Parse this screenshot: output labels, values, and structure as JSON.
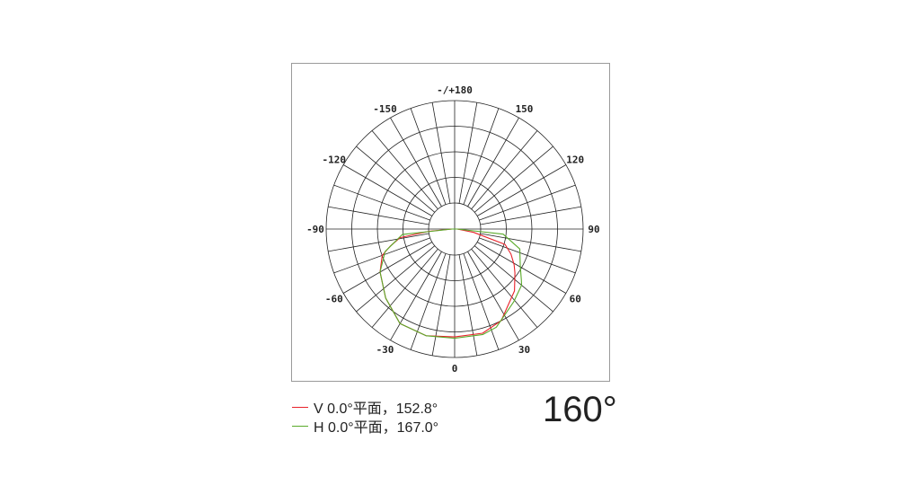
{
  "chart_data": {
    "type": "polar",
    "angle_labels": [
      {
        "angle": 180,
        "text": "-/+180"
      },
      {
        "angle": 150,
        "text": "150"
      },
      {
        "angle": 120,
        "text": "120"
      },
      {
        "angle": 90,
        "text": "90"
      },
      {
        "angle": 60,
        "text": "60"
      },
      {
        "angle": 30,
        "text": "30"
      },
      {
        "angle": 0,
        "text": "0"
      },
      {
        "angle": -30,
        "text": "-30"
      },
      {
        "angle": -60,
        "text": "-60"
      },
      {
        "angle": -90,
        "text": "-90"
      },
      {
        "angle": -120,
        "text": "-120"
      },
      {
        "angle": -150,
        "text": "-150"
      }
    ],
    "angle_direction": "0 at bottom, positive clockwise toward right",
    "spoke_step_deg": 10,
    "rings": 5,
    "rlim": [
      0,
      100
    ],
    "series": [
      {
        "name": "V 0.0°平面，152.8°",
        "color": "#e8222a",
        "angles": [
          -90,
          -85,
          -81,
          -75,
          -70,
          -60,
          -45,
          -30,
          -15,
          0,
          15,
          27,
          44,
          54,
          59,
          66,
          73,
          80,
          90
        ],
        "values": [
          2,
          20,
          43,
          52,
          60,
          67,
          76,
          85,
          86,
          84,
          84,
          80,
          67,
          58,
          54,
          48,
          41,
          15,
          2
        ]
      },
      {
        "name": "H 0.0°平面，167.0°",
        "color": "#5aaa2a",
        "angles": [
          -90,
          -84,
          -72,
          -60,
          -45,
          -30,
          -15,
          0,
          15,
          23,
          39,
          50,
          53,
          60,
          73,
          84,
          90
        ],
        "values": [
          2,
          41,
          57,
          67,
          76,
          85,
          86,
          85,
          85,
          83,
          73,
          68,
          65,
          59,
          53,
          38,
          2
        ]
      }
    ]
  },
  "legend": [
    {
      "text": "V 0.0°平面，152.8°",
      "color": "#e8222a"
    },
    {
      "text": "H 0.0°平面，167.0°",
      "color": "#5aaa2a"
    }
  ],
  "beam_angle": "160°"
}
